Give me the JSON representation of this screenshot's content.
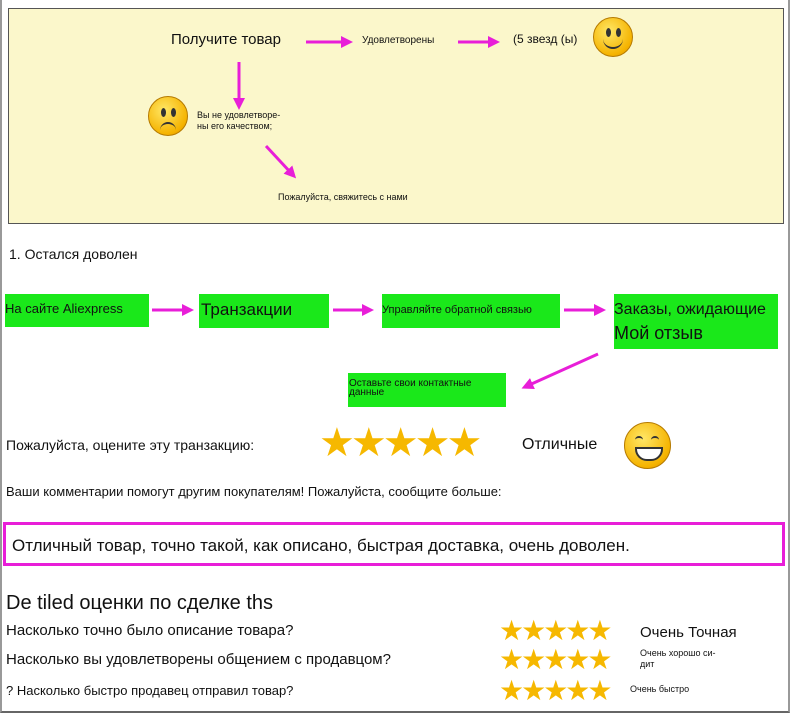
{
  "diagram": {
    "get_item": "Получите товар",
    "satisfied": "Удовлетворены",
    "five_stars": "(5 звезд (ы)",
    "not_satisfied": "Вы не удовлетворе-\nны его качеством;",
    "contact_us": "Пожалуйста, свяжитесь с нами"
  },
  "step_title": "1. Остался доволен",
  "flow": {
    "aliexpress": "На сайте Aliexpress",
    "transactions": "Транзакции",
    "manage_feedback": "Управляйте обратной связью",
    "orders_awaiting": "Заказы, ожидающие",
    "my_review": "Мой отзыв",
    "leave_contact": "Оставьте свои контактные данные"
  },
  "rate_label": "Пожалуйста, оцените эту транзакцию:",
  "rating": {
    "stars": 5,
    "max": 5,
    "label": "Отличные"
  },
  "comment_prompt": "Ваши комментарии помогут другим покупателям! Пожалуйста, сообщите больше:",
  "comment_text": "Отличный товар, точно такой, как описано, быстрая доставка, очень доволен.",
  "detailed_title": "De tiled оценки по сделке ths",
  "detailed": [
    {
      "question": "Насколько точно было описание товара?",
      "stars": 5,
      "label": "Очень Точная"
    },
    {
      "question": "Насколько вы удовлетворены общением с продавцом?",
      "stars": 5,
      "label": "Очень хорошо си-\nдит"
    },
    {
      "question": "? Насколько быстро продавец отправил товар?",
      "stars": 5,
      "label": "Очень быстро"
    }
  ],
  "colors": {
    "arrow": "#e81ed8",
    "box": "#1ae81a",
    "border": "#e81ed8",
    "star": "#f6b800"
  }
}
